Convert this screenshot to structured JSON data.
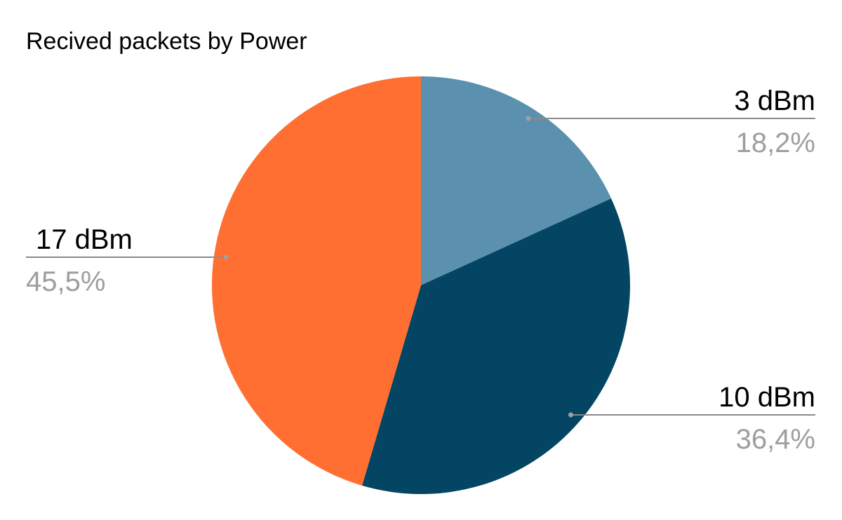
{
  "chart_data": {
    "type": "pie",
    "title": "Recived packets by Power",
    "slices": [
      {
        "label": "3 dBm",
        "value": 18.2,
        "value_label": "18,2%",
        "color": "#5b91ae"
      },
      {
        "label": "10 dBm",
        "value": 36.4,
        "value_label": "36,4%",
        "color": "#034562"
      },
      {
        "label": "17 dBm",
        "value": 45.5,
        "value_label": "45,5%",
        "color": "#ff6f31"
      }
    ],
    "legend": "none",
    "label_position": "outside-with-leader-lines"
  }
}
